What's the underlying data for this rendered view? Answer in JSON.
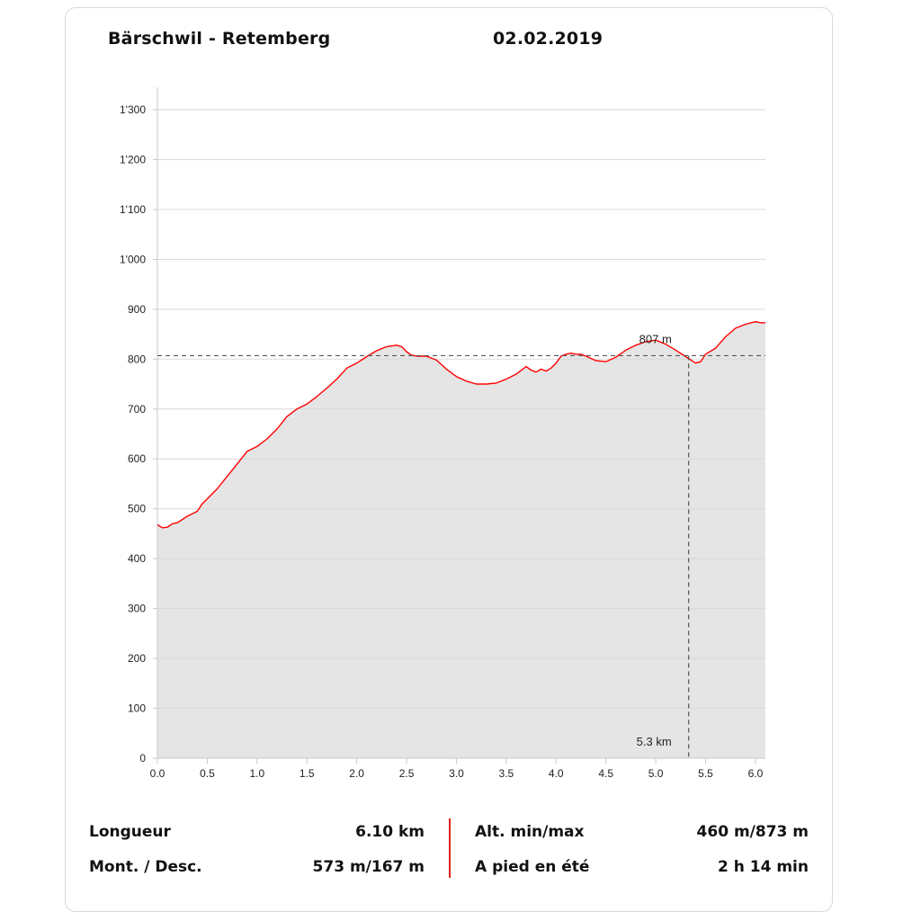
{
  "header": {
    "title": "Bärschwil - Retemberg",
    "date": "02.02.2019"
  },
  "chart_data": {
    "type": "area",
    "title": "",
    "xlabel": "",
    "ylabel": "",
    "xlim": [
      0,
      6.1
    ],
    "ylim": [
      0,
      1350
    ],
    "grid": true,
    "x_ticks": [
      0,
      0.5,
      1.0,
      1.5,
      2.0,
      2.5,
      3.0,
      3.5,
      4.0,
      4.5,
      5.0,
      5.5,
      6.0
    ],
    "x_tick_labels": [
      "0.0",
      "0.5",
      "1.0",
      "1.5",
      "2.0",
      "2.5",
      "3.0",
      "3.5",
      "4.0",
      "4.5",
      "5.0",
      "5.5",
      "6.0"
    ],
    "y_ticks": [
      0,
      100,
      200,
      300,
      400,
      500,
      600,
      700,
      800,
      900,
      1000,
      1100,
      1200,
      1300
    ],
    "y_tick_labels": [
      "0",
      "100",
      "200",
      "300",
      "400",
      "500",
      "600",
      "700",
      "800",
      "900",
      "1'000",
      "1'100",
      "1'200",
      "1'300"
    ],
    "colors": {
      "line": "#ff0000",
      "fill": "#e5e5e5",
      "grid": "#d9d9d9",
      "marker": "#555555"
    },
    "series": [
      {
        "x": [
          0.0,
          0.05,
          0.1,
          0.15,
          0.2,
          0.3,
          0.4,
          0.45,
          0.5,
          0.6,
          0.7,
          0.8,
          0.9,
          1.0,
          1.1,
          1.2,
          1.3,
          1.4,
          1.5,
          1.6,
          1.7,
          1.8,
          1.9,
          2.0,
          2.1,
          2.2,
          2.3,
          2.4,
          2.45,
          2.5,
          2.55,
          2.6,
          2.7,
          2.8,
          2.9,
          3.0,
          3.1,
          3.2,
          3.3,
          3.4,
          3.5,
          3.6,
          3.7,
          3.75,
          3.8,
          3.85,
          3.9,
          3.95,
          4.0,
          4.05,
          4.1,
          4.15,
          4.2,
          4.25,
          4.3,
          4.4,
          4.5,
          4.6,
          4.7,
          4.8,
          4.9,
          5.0,
          5.1,
          5.2,
          5.3,
          5.4,
          5.45,
          5.5,
          5.6,
          5.7,
          5.8,
          5.9,
          6.0,
          6.05,
          6.1
        ],
        "y": [
          468,
          462,
          463,
          470,
          472,
          485,
          495,
          510,
          520,
          540,
          565,
          590,
          615,
          625,
          640,
          660,
          685,
          700,
          710,
          725,
          742,
          760,
          782,
          792,
          805,
          817,
          825,
          828,
          825,
          815,
          808,
          806,
          806,
          798,
          780,
          765,
          756,
          750,
          750,
          752,
          760,
          770,
          785,
          778,
          774,
          780,
          776,
          782,
          792,
          806,
          810,
          812,
          810,
          810,
          806,
          797,
          795,
          804,
          818,
          828,
          835,
          838,
          830,
          818,
          805,
          792,
          795,
          810,
          822,
          845,
          862,
          870,
          875,
          873,
          873
        ]
      }
    ],
    "marker": {
      "x_label": "5.3 km",
      "y_label": "807 m",
      "x": 5.33,
      "y": 807
    }
  },
  "stats": {
    "length_label": "Longueur",
    "length_value": "6.10 km",
    "ascent_label": "Mont. / Desc.",
    "ascent_value": "573 m/167 m",
    "alt_label": "Alt. min/max",
    "alt_value": "460 m/873 m",
    "time_label": "A pied en été",
    "time_value": "2 h 14 min"
  }
}
